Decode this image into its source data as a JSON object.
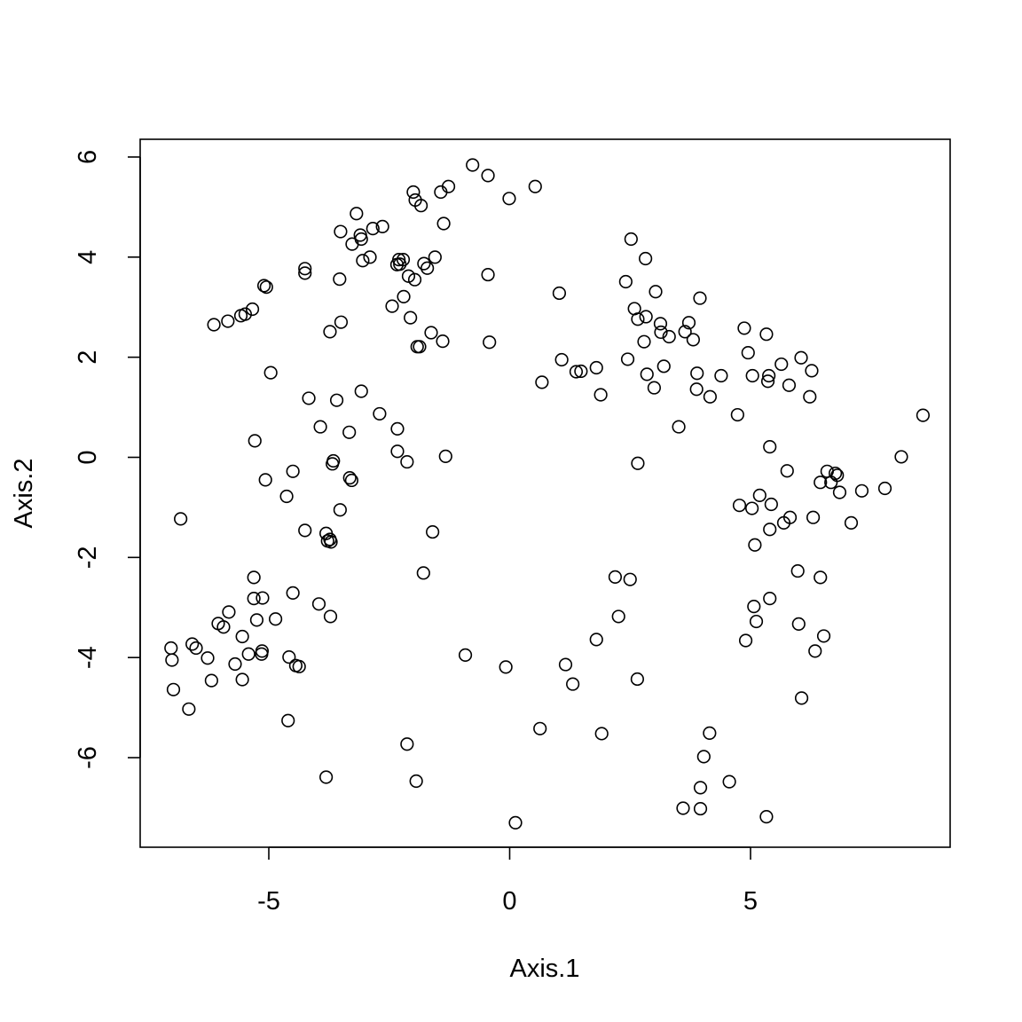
{
  "chart_data": {
    "type": "scatter",
    "title": "",
    "xlabel": "Axis.1",
    "ylabel": "Axis.2",
    "xlim": [
      -7.6,
      9.2
    ],
    "ylim": [
      -7.5,
      6.4
    ],
    "xticks": [
      -5,
      0,
      5
    ],
    "yticks": [
      -6,
      -4,
      -2,
      0,
      2,
      4,
      6
    ],
    "xtick_labels": [
      "-5",
      "0",
      "5"
    ],
    "ytick_labels": [
      "-6",
      "-4",
      "-2",
      "0",
      "2",
      "4",
      "6"
    ],
    "grid": false,
    "marker": "open-circle",
    "color": "#000000",
    "points": [
      [
        -0.77,
        5.84
      ],
      [
        -0.45,
        5.63
      ],
      [
        -0.01,
        5.17
      ],
      [
        0.53,
        5.41
      ],
      [
        -1.27,
        5.41
      ],
      [
        -1.43,
        5.3
      ],
      [
        -2.0,
        5.3
      ],
      [
        -1.96,
        5.14
      ],
      [
        -1.84,
        5.03
      ],
      [
        -1.37,
        4.67
      ],
      [
        -3.18,
        4.87
      ],
      [
        -2.64,
        4.61
      ],
      [
        -2.84,
        4.57
      ],
      [
        -3.1,
        4.44
      ],
      [
        -3.08,
        4.36
      ],
      [
        -3.51,
        4.51
      ],
      [
        -3.27,
        4.26
      ],
      [
        -2.9,
        4.0
      ],
      [
        -3.05,
        3.93
      ],
      [
        -4.25,
        3.77
      ],
      [
        -4.25,
        3.68
      ],
      [
        -3.53,
        3.56
      ],
      [
        -2.3,
        3.95
      ],
      [
        -2.21,
        3.95
      ],
      [
        -2.34,
        3.85
      ],
      [
        -2.28,
        3.86
      ],
      [
        -1.78,
        3.87
      ],
      [
        -1.55,
        4.0
      ],
      [
        -1.71,
        3.78
      ],
      [
        -2.1,
        3.62
      ],
      [
        -1.97,
        3.55
      ],
      [
        -5.1,
        3.43
      ],
      [
        -5.05,
        3.4
      ],
      [
        -5.34,
        2.96
      ],
      [
        -5.49,
        2.86
      ],
      [
        -5.58,
        2.83
      ],
      [
        -5.85,
        2.72
      ],
      [
        -6.14,
        2.65
      ],
      [
        -2.2,
        3.21
      ],
      [
        -2.44,
        3.02
      ],
      [
        -2.06,
        2.79
      ],
      [
        -3.5,
        2.7
      ],
      [
        -3.73,
        2.51
      ],
      [
        -1.63,
        2.49
      ],
      [
        -1.39,
        2.32
      ],
      [
        -1.92,
        2.21
      ],
      [
        -1.87,
        2.21
      ],
      [
        -0.45,
        3.65
      ],
      [
        -0.42,
        2.3
      ],
      [
        -4.96,
        1.69
      ],
      [
        -4.17,
        1.18
      ],
      [
        -3.59,
        1.14
      ],
      [
        -3.08,
        1.32
      ],
      [
        -2.7,
        0.87
      ],
      [
        -3.93,
        0.61
      ],
      [
        -3.33,
        0.5
      ],
      [
        -2.33,
        0.57
      ],
      [
        -5.29,
        0.33
      ],
      [
        -2.33,
        0.12
      ],
      [
        -2.13,
        -0.09
      ],
      [
        -1.33,
        0.02
      ],
      [
        -3.66,
        -0.07
      ],
      [
        -3.68,
        -0.13
      ],
      [
        -4.5,
        -0.28
      ],
      [
        -3.32,
        -0.41
      ],
      [
        -3.28,
        -0.46
      ],
      [
        -5.07,
        -0.45
      ],
      [
        -4.63,
        -0.78
      ],
      [
        -3.52,
        -1.05
      ],
      [
        -6.83,
        -1.23
      ],
      [
        -4.25,
        -1.46
      ],
      [
        -3.81,
        -1.52
      ],
      [
        -1.6,
        -1.49
      ],
      [
        -3.73,
        -1.64
      ],
      [
        -3.78,
        -1.67
      ],
      [
        -3.71,
        -1.69
      ],
      [
        -1.79,
        -2.31
      ],
      [
        -5.31,
        -2.4
      ],
      [
        -4.5,
        -2.71
      ],
      [
        -5.31,
        -2.82
      ],
      [
        -5.13,
        -2.81
      ],
      [
        -3.96,
        -2.93
      ],
      [
        -5.83,
        -3.09
      ],
      [
        -3.72,
        -3.18
      ],
      [
        -5.25,
        -3.25
      ],
      [
        -4.86,
        -3.23
      ],
      [
        -6.05,
        -3.32
      ],
      [
        -5.94,
        -3.39
      ],
      [
        -5.55,
        -3.58
      ],
      [
        -6.59,
        -3.73
      ],
      [
        -6.51,
        -3.81
      ],
      [
        -5.14,
        -3.87
      ],
      [
        -5.15,
        -3.93
      ],
      [
        -5.42,
        -3.93
      ],
      [
        -7.03,
        -3.81
      ],
      [
        -7.01,
        -4.05
      ],
      [
        -6.27,
        -4.01
      ],
      [
        -5.7,
        -4.13
      ],
      [
        -4.58,
        -3.99
      ],
      [
        -4.44,
        -4.16
      ],
      [
        -4.37,
        -4.18
      ],
      [
        -6.19,
        -4.46
      ],
      [
        -5.55,
        -4.44
      ],
      [
        -6.98,
        -4.64
      ],
      [
        -6.66,
        -5.03
      ],
      [
        -4.6,
        -5.26
      ],
      [
        -0.92,
        -3.95
      ],
      [
        -0.08,
        -4.19
      ],
      [
        -2.13,
        -5.73
      ],
      [
        -3.81,
        -6.39
      ],
      [
        -1.94,
        -6.47
      ],
      [
        0.12,
        -7.3
      ],
      [
        0.63,
        -5.42
      ],
      [
        1.16,
        -4.14
      ],
      [
        1.31,
        -4.53
      ],
      [
        1.8,
        -3.64
      ],
      [
        1.91,
        -5.52
      ],
      [
        2.19,
        -2.39
      ],
      [
        2.26,
        -3.18
      ],
      [
        2.5,
        -2.44
      ],
      [
        2.65,
        -4.43
      ],
      [
        3.6,
        -7.01
      ],
      [
        3.96,
        -7.02
      ],
      [
        3.96,
        -6.6
      ],
      [
        4.03,
        -5.98
      ],
      [
        4.15,
        -5.51
      ],
      [
        4.56,
        -6.48
      ],
      [
        5.33,
        -7.18
      ],
      [
        2.52,
        4.36
      ],
      [
        2.82,
        3.97
      ],
      [
        2.41,
        3.51
      ],
      [
        3.03,
        3.31
      ],
      [
        3.95,
        3.18
      ],
      [
        1.03,
        3.28
      ],
      [
        2.59,
        2.97
      ],
      [
        2.83,
        2.81
      ],
      [
        2.66,
        2.76
      ],
      [
        3.13,
        2.67
      ],
      [
        3.72,
        2.69
      ],
      [
        3.64,
        2.51
      ],
      [
        3.14,
        2.5
      ],
      [
        3.31,
        2.41
      ],
      [
        3.81,
        2.35
      ],
      [
        2.79,
        2.31
      ],
      [
        2.45,
        1.96
      ],
      [
        3.2,
        1.82
      ],
      [
        1.08,
        1.95
      ],
      [
        1.38,
        1.71
      ],
      [
        1.48,
        1.72
      ],
      [
        1.8,
        1.79
      ],
      [
        2.85,
        1.66
      ],
      [
        3.89,
        1.68
      ],
      [
        4.39,
        1.63
      ],
      [
        3.0,
        1.39
      ],
      [
        3.88,
        1.36
      ],
      [
        4.16,
        1.21
      ],
      [
        0.67,
        1.5
      ],
      [
        1.89,
        1.25
      ],
      [
        3.51,
        0.61
      ],
      [
        2.66,
        -0.12
      ],
      [
        4.87,
        2.58
      ],
      [
        5.33,
        2.46
      ],
      [
        4.95,
        2.09
      ],
      [
        6.05,
        1.99
      ],
      [
        5.64,
        1.86
      ],
      [
        6.27,
        1.73
      ],
      [
        5.04,
        1.63
      ],
      [
        5.38,
        1.63
      ],
      [
        5.36,
        1.52
      ],
      [
        5.8,
        1.44
      ],
      [
        6.23,
        1.21
      ],
      [
        4.73,
        0.85
      ],
      [
        8.58,
        0.84
      ],
      [
        5.4,
        0.21
      ],
      [
        8.13,
        0.01
      ],
      [
        5.76,
        -0.27
      ],
      [
        6.59,
        -0.28
      ],
      [
        6.76,
        -0.32
      ],
      [
        6.8,
        -0.36
      ],
      [
        6.45,
        -0.5
      ],
      [
        6.67,
        -0.5
      ],
      [
        6.85,
        -0.7
      ],
      [
        7.31,
        -0.67
      ],
      [
        7.79,
        -0.62
      ],
      [
        5.19,
        -0.76
      ],
      [
        5.43,
        -0.94
      ],
      [
        4.77,
        -0.96
      ],
      [
        5.03,
        -1.02
      ],
      [
        5.82,
        -1.2
      ],
      [
        5.69,
        -1.31
      ],
      [
        6.3,
        -1.2
      ],
      [
        7.09,
        -1.31
      ],
      [
        5.4,
        -1.44
      ],
      [
        5.09,
        -1.75
      ],
      [
        5.98,
        -2.27
      ],
      [
        6.45,
        -2.4
      ],
      [
        5.4,
        -2.82
      ],
      [
        5.07,
        -2.98
      ],
      [
        5.12,
        -3.28
      ],
      [
        6.0,
        -3.33
      ],
      [
        4.9,
        -3.66
      ],
      [
        6.52,
        -3.57
      ],
      [
        6.34,
        -3.87
      ],
      [
        6.06,
        -4.81
      ]
    ]
  }
}
